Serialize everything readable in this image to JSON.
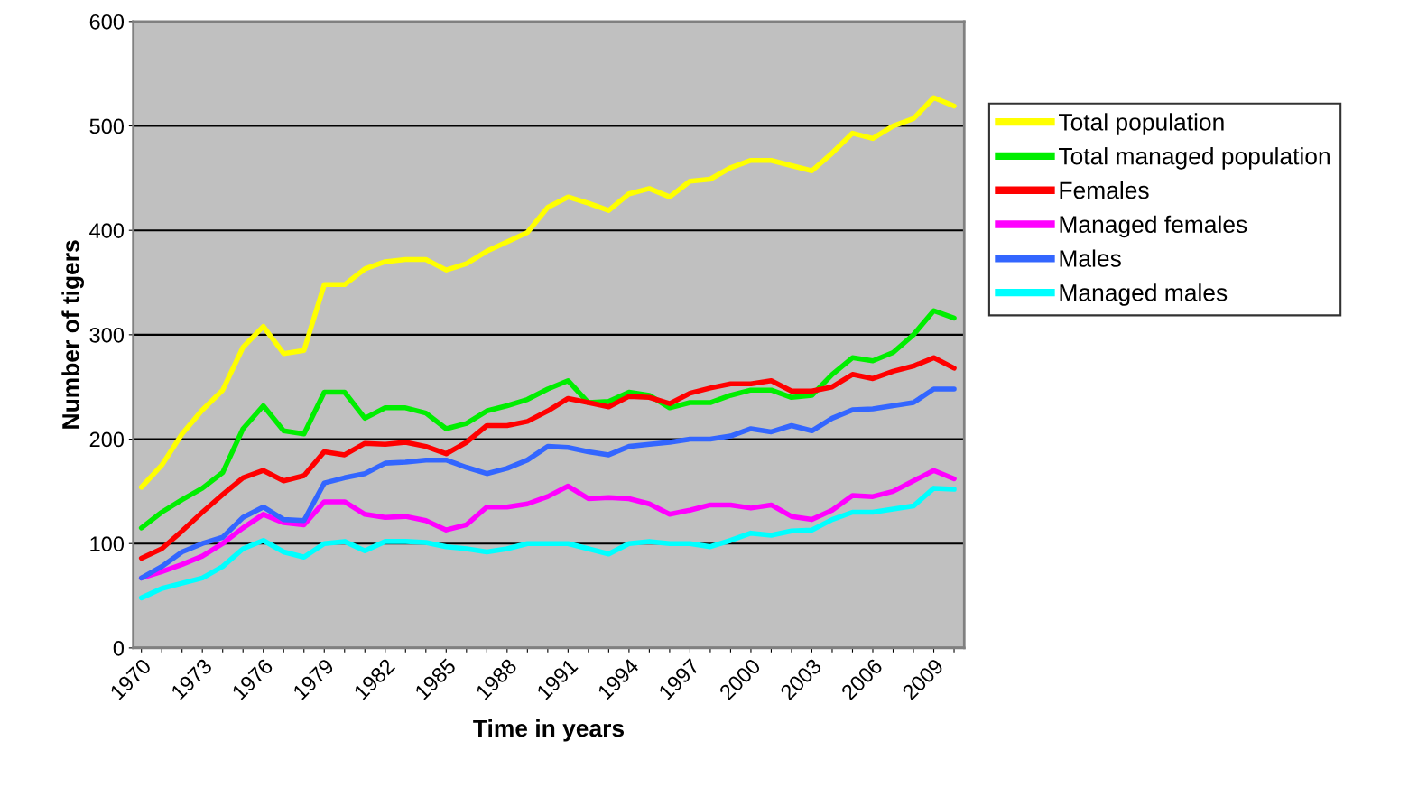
{
  "chart_data": {
    "type": "line",
    "xlabel": "Time in years",
    "ylabel": "Number of tigers",
    "categories": [
      "1970",
      null,
      null,
      "1973",
      null,
      null,
      "1976",
      null,
      null,
      "1979",
      null,
      null,
      "1982",
      null,
      null,
      "1985",
      null,
      null,
      "1988",
      null,
      null,
      "1991",
      null,
      null,
      "1994",
      null,
      null,
      "1997",
      null,
      null,
      "2000",
      null,
      null,
      "2003",
      null,
      null,
      "2006",
      null,
      null,
      "2009",
      null
    ],
    "ylim": [
      0,
      600
    ],
    "yticks": [
      0,
      100,
      200,
      300,
      400,
      500,
      600
    ],
    "grid": "y",
    "legend": "right",
    "marker": "none",
    "line_style": "solid",
    "series": [
      {
        "name": "Total population",
        "color": "#ffff00",
        "values": [
          154,
          175,
          205,
          228,
          247,
          288,
          308,
          282,
          285,
          348,
          348,
          363,
          370,
          372,
          372,
          362,
          368,
          380,
          389,
          398,
          422,
          432,
          426,
          419,
          435,
          440,
          432,
          447,
          449,
          460,
          467,
          467,
          462,
          457,
          474,
          493,
          488,
          500,
          507,
          527,
          519
        ]
      },
      {
        "name": "Total managed population",
        "color": "#00ee00",
        "values": [
          115,
          130,
          142,
          153,
          168,
          210,
          232,
          208,
          205,
          245,
          245,
          220,
          230,
          230,
          225,
          210,
          215,
          227,
          232,
          238,
          248,
          256,
          235,
          236,
          245,
          242,
          230,
          235,
          235,
          242,
          247,
          247,
          240,
          242,
          262,
          278,
          275,
          283,
          300,
          323,
          316
        ]
      },
      {
        "name": "Females",
        "color": "#ff0000",
        "values": [
          86,
          95,
          112,
          130,
          147,
          163,
          170,
          160,
          165,
          188,
          185,
          196,
          195,
          197,
          193,
          186,
          197,
          213,
          213,
          217,
          227,
          239,
          235,
          231,
          241,
          240,
          234,
          244,
          249,
          253,
          253,
          256,
          246,
          246,
          250,
          262,
          258,
          265,
          270,
          278,
          268
        ]
      },
      {
        "name": "Managed females",
        "color": "#ff00ff",
        "values": [
          67,
          73,
          80,
          88,
          100,
          115,
          128,
          120,
          118,
          140,
          140,
          128,
          125,
          126,
          122,
          113,
          118,
          135,
          135,
          138,
          145,
          155,
          143,
          144,
          143,
          138,
          128,
          132,
          137,
          137,
          134,
          137,
          126,
          123,
          132,
          146,
          145,
          150,
          160,
          170,
          162
        ]
      },
      {
        "name": "Males",
        "color": "#3366ff",
        "values": [
          67,
          78,
          92,
          100,
          106,
          125,
          135,
          123,
          122,
          158,
          163,
          167,
          177,
          178,
          180,
          180,
          173,
          167,
          172,
          180,
          193,
          192,
          188,
          185,
          193,
          195,
          197,
          200,
          200,
          203,
          210,
          207,
          213,
          208,
          220,
          228,
          229,
          232,
          235,
          248,
          248
        ]
      },
      {
        "name": "Managed males",
        "color": "#00ffff",
        "values": [
          48,
          57,
          62,
          67,
          78,
          95,
          103,
          92,
          87,
          100,
          102,
          93,
          102,
          102,
          101,
          97,
          95,
          92,
          95,
          100,
          100,
          100,
          95,
          90,
          100,
          102,
          100,
          100,
          97,
          103,
          110,
          108,
          112,
          113,
          123,
          130,
          130,
          133,
          136,
          153,
          152
        ]
      }
    ]
  }
}
